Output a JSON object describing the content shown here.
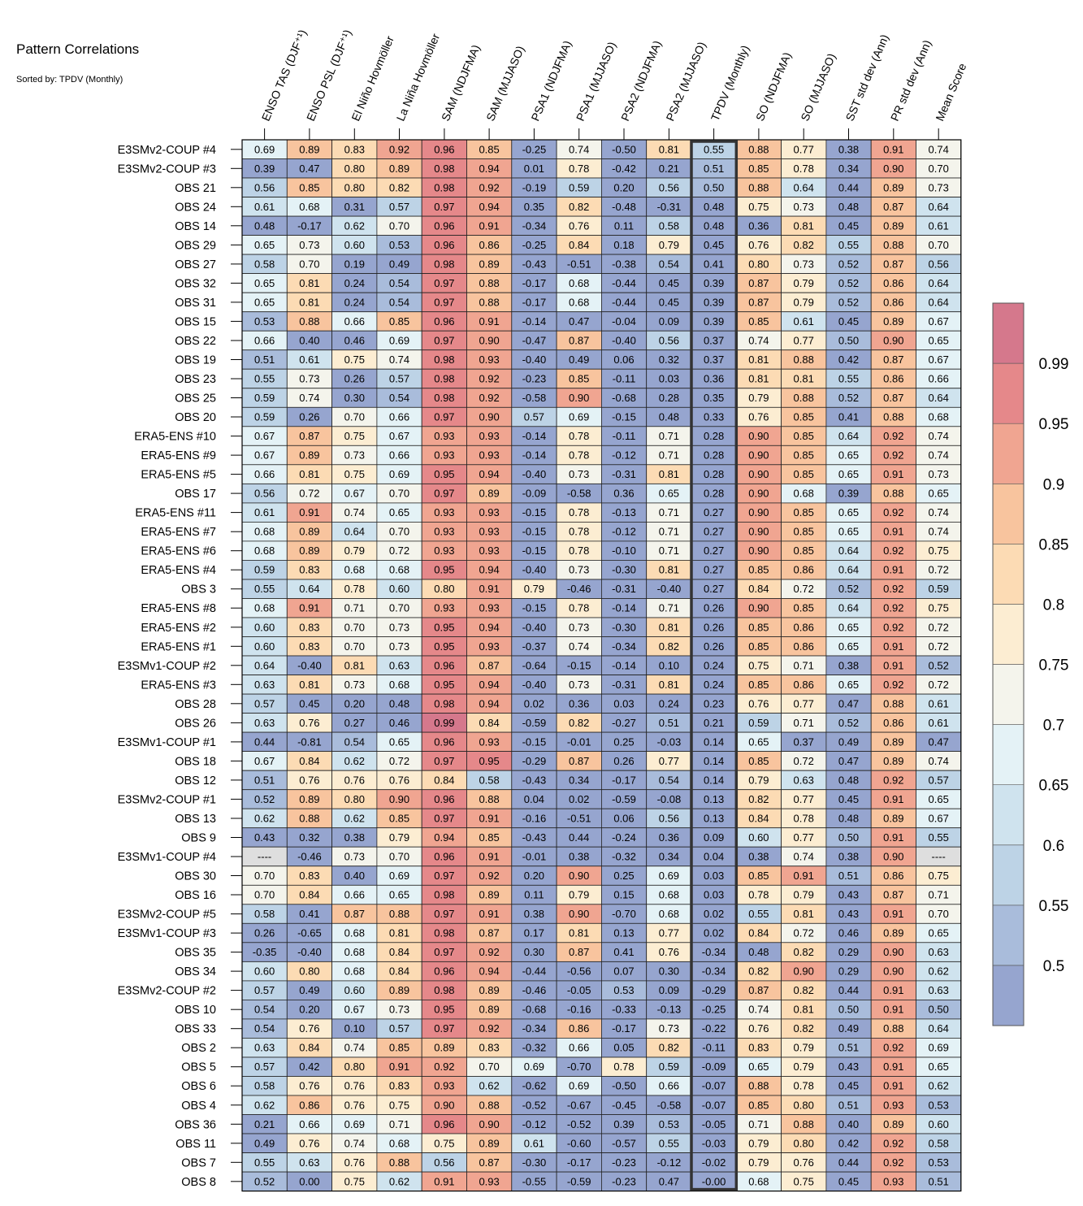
{
  "chart_data": {
    "type": "heatmap",
    "title": "Pattern Correlations",
    "subtitle": "Sorted by: TPDV (Monthly)",
    "columns": [
      "ENSO TAS (DJF⁺¹)",
      "ENSO PSL (DJF⁺¹)",
      "El Niño Hovmöller",
      "La Niña Hovmöller",
      "SAM (NDJFMA)",
      "SAM (MJJASO)",
      "PSA1 (NDJFMA)",
      "PSA1 (MJJASO)",
      "PSA2 (NDJFMA)",
      "PSA2 (MJJASO)",
      "TPDV (Monthly)",
      "SO (NDJFMA)",
      "SO (MJJASO)",
      "SST std dev (Ann)",
      "PR std dev (Ann)",
      "Mean Score"
    ],
    "highlighted_column": "TPDV (Monthly)",
    "missing_label": "----",
    "rows": [
      {
        "name": "E3SMv2-COUP #4",
        "values": [
          0.69,
          0.89,
          0.83,
          0.92,
          0.96,
          0.85,
          -0.25,
          0.74,
          -0.5,
          0.81,
          0.55,
          0.88,
          0.77,
          0.38,
          0.91,
          0.74
        ]
      },
      {
        "name": "E3SMv2-COUP #3",
        "values": [
          0.39,
          0.47,
          0.8,
          0.89,
          0.98,
          0.94,
          0.01,
          0.78,
          -0.42,
          0.21,
          0.51,
          0.85,
          0.78,
          0.34,
          0.9,
          0.7
        ]
      },
      {
        "name": "OBS 21",
        "values": [
          0.56,
          0.85,
          0.8,
          0.82,
          0.98,
          0.92,
          -0.19,
          0.59,
          0.2,
          0.56,
          0.5,
          0.88,
          0.64,
          0.44,
          0.89,
          0.73
        ]
      },
      {
        "name": "OBS 24",
        "values": [
          0.61,
          0.68,
          0.31,
          0.57,
          0.97,
          0.94,
          0.35,
          0.82,
          -0.48,
          -0.31,
          0.48,
          0.75,
          0.73,
          0.48,
          0.87,
          0.64
        ]
      },
      {
        "name": "OBS 14",
        "values": [
          0.48,
          -0.17,
          0.62,
          0.7,
          0.96,
          0.91,
          -0.34,
          0.76,
          0.11,
          0.58,
          0.48,
          0.36,
          0.81,
          0.45,
          0.89,
          0.61
        ]
      },
      {
        "name": "OBS 29",
        "values": [
          0.65,
          0.73,
          0.6,
          0.53,
          0.96,
          0.86,
          -0.25,
          0.84,
          0.18,
          0.79,
          0.45,
          0.76,
          0.82,
          0.55,
          0.88,
          0.7
        ]
      },
      {
        "name": "OBS 27",
        "values": [
          0.58,
          0.7,
          0.19,
          0.49,
          0.98,
          0.89,
          -0.43,
          -0.51,
          -0.38,
          0.54,
          0.41,
          0.8,
          0.73,
          0.52,
          0.87,
          0.56
        ]
      },
      {
        "name": "OBS 32",
        "values": [
          0.65,
          0.81,
          0.24,
          0.54,
          0.97,
          0.88,
          -0.17,
          0.68,
          -0.44,
          0.45,
          0.39,
          0.87,
          0.79,
          0.52,
          0.86,
          0.64
        ]
      },
      {
        "name": "OBS 31",
        "values": [
          0.65,
          0.81,
          0.24,
          0.54,
          0.97,
          0.88,
          -0.17,
          0.68,
          -0.44,
          0.45,
          0.39,
          0.87,
          0.79,
          0.52,
          0.86,
          0.64
        ]
      },
      {
        "name": "OBS 15",
        "values": [
          0.53,
          0.88,
          0.66,
          0.85,
          0.96,
          0.91,
          -0.14,
          0.47,
          -0.04,
          0.09,
          0.39,
          0.85,
          0.61,
          0.45,
          0.89,
          0.67
        ]
      },
      {
        "name": "OBS 22",
        "values": [
          0.66,
          0.4,
          0.46,
          0.69,
          0.97,
          0.9,
          -0.47,
          0.87,
          -0.4,
          0.56,
          0.37,
          0.74,
          0.77,
          0.5,
          0.9,
          0.65
        ]
      },
      {
        "name": "OBS 19",
        "values": [
          0.51,
          0.61,
          0.75,
          0.74,
          0.98,
          0.93,
          -0.4,
          0.49,
          0.06,
          0.32,
          0.37,
          0.81,
          0.88,
          0.42,
          0.87,
          0.67
        ]
      },
      {
        "name": "OBS 23",
        "values": [
          0.55,
          0.73,
          0.26,
          0.57,
          0.98,
          0.92,
          -0.23,
          0.85,
          -0.11,
          0.03,
          0.36,
          0.81,
          0.81,
          0.55,
          0.86,
          0.66
        ]
      },
      {
        "name": "OBS 25",
        "values": [
          0.59,
          0.74,
          0.3,
          0.54,
          0.98,
          0.92,
          -0.58,
          0.9,
          -0.68,
          0.28,
          0.35,
          0.79,
          0.88,
          0.52,
          0.87,
          0.64
        ]
      },
      {
        "name": "OBS 20",
        "values": [
          0.59,
          0.26,
          0.7,
          0.66,
          0.97,
          0.9,
          0.57,
          0.69,
          -0.15,
          0.48,
          0.33,
          0.76,
          0.85,
          0.41,
          0.88,
          0.68
        ]
      },
      {
        "name": "ERA5-ENS    #10",
        "values": [
          0.67,
          0.87,
          0.75,
          0.67,
          0.93,
          0.93,
          -0.14,
          0.78,
          -0.11,
          0.71,
          0.28,
          0.9,
          0.85,
          0.64,
          0.92,
          0.74
        ]
      },
      {
        "name": "ERA5-ENS    #9",
        "values": [
          0.67,
          0.89,
          0.73,
          0.66,
          0.93,
          0.93,
          -0.14,
          0.78,
          -0.12,
          0.71,
          0.28,
          0.9,
          0.85,
          0.65,
          0.92,
          0.74
        ]
      },
      {
        "name": "ERA5-ENS    #5",
        "values": [
          0.66,
          0.81,
          0.75,
          0.69,
          0.95,
          0.94,
          -0.4,
          0.73,
          -0.31,
          0.81,
          0.28,
          0.9,
          0.85,
          0.65,
          0.91,
          0.73
        ]
      },
      {
        "name": "OBS 17",
        "values": [
          0.56,
          0.72,
          0.67,
          0.7,
          0.97,
          0.89,
          -0.09,
          -0.58,
          0.36,
          0.65,
          0.28,
          0.9,
          0.68,
          0.39,
          0.88,
          0.65
        ]
      },
      {
        "name": "ERA5-ENS    #11",
        "values": [
          0.61,
          0.91,
          0.74,
          0.65,
          0.93,
          0.93,
          -0.15,
          0.78,
          -0.13,
          0.71,
          0.27,
          0.9,
          0.85,
          0.65,
          0.92,
          0.74
        ]
      },
      {
        "name": "ERA5-ENS    #7",
        "values": [
          0.68,
          0.89,
          0.64,
          0.7,
          0.93,
          0.93,
          -0.15,
          0.78,
          -0.12,
          0.71,
          0.27,
          0.9,
          0.85,
          0.65,
          0.91,
          0.74
        ]
      },
      {
        "name": "ERA5-ENS    #6",
        "values": [
          0.68,
          0.89,
          0.79,
          0.72,
          0.93,
          0.93,
          -0.15,
          0.78,
          -0.1,
          0.71,
          0.27,
          0.9,
          0.85,
          0.64,
          0.92,
          0.75
        ]
      },
      {
        "name": "ERA5-ENS    #4",
        "values": [
          0.59,
          0.83,
          0.68,
          0.68,
          0.95,
          0.94,
          -0.4,
          0.73,
          -0.3,
          0.81,
          0.27,
          0.85,
          0.86,
          0.64,
          0.91,
          0.72
        ]
      },
      {
        "name": "OBS 3",
        "values": [
          0.55,
          0.64,
          0.78,
          0.6,
          0.8,
          0.91,
          0.79,
          -0.46,
          -0.31,
          -0.4,
          0.27,
          0.84,
          0.72,
          0.52,
          0.92,
          0.59
        ]
      },
      {
        "name": "ERA5-ENS    #8",
        "values": [
          0.68,
          0.91,
          0.71,
          0.7,
          0.93,
          0.93,
          -0.15,
          0.78,
          -0.14,
          0.71,
          0.26,
          0.9,
          0.85,
          0.64,
          0.92,
          0.75
        ]
      },
      {
        "name": "ERA5-ENS    #2",
        "values": [
          0.6,
          0.83,
          0.7,
          0.73,
          0.95,
          0.94,
          -0.4,
          0.73,
          -0.3,
          0.81,
          0.26,
          0.85,
          0.86,
          0.65,
          0.92,
          0.72
        ]
      },
      {
        "name": "ERA5-ENS    #1",
        "values": [
          0.6,
          0.83,
          0.7,
          0.73,
          0.95,
          0.93,
          -0.37,
          0.74,
          -0.34,
          0.82,
          0.26,
          0.85,
          0.86,
          0.65,
          0.91,
          0.72
        ]
      },
      {
        "name": "E3SMv1-COUP #2",
        "values": [
          0.64,
          -0.4,
          0.81,
          0.63,
          0.96,
          0.87,
          -0.64,
          -0.15,
          -0.14,
          0.1,
          0.24,
          0.75,
          0.71,
          0.38,
          0.91,
          0.52
        ]
      },
      {
        "name": "ERA5-ENS    #3",
        "values": [
          0.63,
          0.81,
          0.73,
          0.68,
          0.95,
          0.94,
          -0.4,
          0.73,
          -0.31,
          0.81,
          0.24,
          0.85,
          0.86,
          0.65,
          0.92,
          0.72
        ]
      },
      {
        "name": "OBS 28",
        "values": [
          0.57,
          0.45,
          0.2,
          0.48,
          0.98,
          0.94,
          0.02,
          0.36,
          0.03,
          0.24,
          0.23,
          0.76,
          0.77,
          0.47,
          0.88,
          0.61
        ]
      },
      {
        "name": "OBS 26",
        "values": [
          0.63,
          0.76,
          0.27,
          0.46,
          0.99,
          0.84,
          -0.59,
          0.82,
          -0.27,
          0.51,
          0.21,
          0.59,
          0.71,
          0.52,
          0.86,
          0.61
        ]
      },
      {
        "name": "E3SMv1-COUP #1",
        "values": [
          0.44,
          -0.81,
          0.54,
          0.65,
          0.96,
          0.93,
          -0.15,
          -0.01,
          0.25,
          -0.03,
          0.14,
          0.65,
          0.37,
          0.49,
          0.89,
          0.47
        ]
      },
      {
        "name": "OBS 18",
        "values": [
          0.67,
          0.84,
          0.62,
          0.72,
          0.97,
          0.95,
          -0.29,
          0.87,
          0.26,
          0.77,
          0.14,
          0.85,
          0.72,
          0.47,
          0.89,
          0.74
        ]
      },
      {
        "name": "OBS 12",
        "values": [
          0.51,
          0.76,
          0.76,
          0.76,
          0.84,
          0.58,
          -0.43,
          0.34,
          -0.17,
          0.54,
          0.14,
          0.79,
          0.63,
          0.48,
          0.92,
          0.57
        ]
      },
      {
        "name": "E3SMv2-COUP #1",
        "values": [
          0.52,
          0.89,
          0.8,
          0.9,
          0.96,
          0.88,
          0.04,
          0.02,
          -0.59,
          -0.08,
          0.13,
          0.82,
          0.77,
          0.45,
          0.91,
          0.65
        ]
      },
      {
        "name": "OBS 13",
        "values": [
          0.62,
          0.88,
          0.62,
          0.85,
          0.97,
          0.91,
          -0.16,
          -0.51,
          0.06,
          0.56,
          0.13,
          0.84,
          0.78,
          0.48,
          0.89,
          0.67
        ]
      },
      {
        "name": "OBS 9",
        "values": [
          0.43,
          0.32,
          0.38,
          0.79,
          0.94,
          0.85,
          -0.43,
          0.44,
          -0.24,
          0.36,
          0.09,
          0.6,
          0.77,
          0.5,
          0.91,
          0.55
        ]
      },
      {
        "name": "E3SMv1-COUP #4",
        "values": [
          null,
          -0.46,
          0.73,
          0.7,
          0.96,
          0.91,
          -0.01,
          0.38,
          -0.32,
          0.34,
          0.04,
          0.38,
          0.74,
          0.38,
          0.9,
          null
        ]
      },
      {
        "name": "OBS 30",
        "values": [
          0.7,
          0.83,
          0.4,
          0.69,
          0.97,
          0.92,
          0.2,
          0.9,
          0.25,
          0.69,
          0.03,
          0.85,
          0.91,
          0.51,
          0.86,
          0.75
        ]
      },
      {
        "name": "OBS 16",
        "values": [
          0.7,
          0.84,
          0.66,
          0.65,
          0.98,
          0.89,
          0.11,
          0.79,
          0.15,
          0.68,
          0.03,
          0.78,
          0.79,
          0.43,
          0.87,
          0.71
        ]
      },
      {
        "name": "E3SMv2-COUP #5",
        "values": [
          0.58,
          0.41,
          0.87,
          0.88,
          0.97,
          0.91,
          0.38,
          0.9,
          -0.7,
          0.68,
          0.02,
          0.55,
          0.81,
          0.43,
          0.91,
          0.7
        ]
      },
      {
        "name": "E3SMv1-COUP #3",
        "values": [
          0.26,
          -0.65,
          0.68,
          0.81,
          0.98,
          0.87,
          0.17,
          0.81,
          0.13,
          0.77,
          0.02,
          0.84,
          0.72,
          0.46,
          0.89,
          0.65
        ]
      },
      {
        "name": "OBS 35",
        "values": [
          -0.35,
          -0.4,
          0.68,
          0.84,
          0.97,
          0.92,
          0.3,
          0.87,
          0.41,
          0.76,
          -0.34,
          0.48,
          0.82,
          0.29,
          0.9,
          0.63
        ]
      },
      {
        "name": "OBS 34",
        "values": [
          0.6,
          0.8,
          0.68,
          0.84,
          0.96,
          0.94,
          -0.44,
          -0.56,
          0.07,
          0.3,
          -0.34,
          0.82,
          0.9,
          0.29,
          0.9,
          0.62
        ]
      },
      {
        "name": "E3SMv2-COUP #2",
        "values": [
          0.57,
          0.49,
          0.6,
          0.89,
          0.98,
          0.89,
          -0.46,
          -0.05,
          0.53,
          0.09,
          -0.29,
          0.87,
          0.82,
          0.44,
          0.91,
          0.63
        ]
      },
      {
        "name": "OBS 10",
        "values": [
          0.54,
          0.2,
          0.67,
          0.73,
          0.95,
          0.89,
          -0.68,
          -0.16,
          -0.33,
          -0.13,
          -0.25,
          0.74,
          0.81,
          0.5,
          0.91,
          0.5
        ]
      },
      {
        "name": "OBS 33",
        "values": [
          0.54,
          0.76,
          0.1,
          0.57,
          0.97,
          0.92,
          -0.34,
          0.86,
          -0.17,
          0.73,
          -0.22,
          0.76,
          0.82,
          0.49,
          0.88,
          0.64
        ]
      },
      {
        "name": "OBS 2",
        "values": [
          0.63,
          0.84,
          0.74,
          0.85,
          0.89,
          0.83,
          -0.32,
          0.66,
          0.05,
          0.82,
          -0.11,
          0.83,
          0.79,
          0.51,
          0.92,
          0.69
        ]
      },
      {
        "name": "OBS 5",
        "values": [
          0.57,
          0.42,
          0.8,
          0.91,
          0.92,
          0.7,
          0.69,
          -0.7,
          0.78,
          0.59,
          -0.09,
          0.65,
          0.79,
          0.43,
          0.91,
          0.65
        ]
      },
      {
        "name": "OBS 6",
        "values": [
          0.58,
          0.76,
          0.76,
          0.83,
          0.93,
          0.62,
          -0.62,
          0.69,
          -0.5,
          0.66,
          -0.07,
          0.88,
          0.78,
          0.45,
          0.91,
          0.62
        ]
      },
      {
        "name": "OBS 4",
        "values": [
          0.62,
          0.86,
          0.76,
          0.75,
          0.9,
          0.88,
          -0.52,
          -0.67,
          -0.45,
          -0.58,
          -0.07,
          0.85,
          0.8,
          0.51,
          0.93,
          0.53
        ]
      },
      {
        "name": "OBS 36",
        "values": [
          0.21,
          0.66,
          0.69,
          0.71,
          0.96,
          0.9,
          -0.12,
          -0.52,
          0.39,
          0.53,
          -0.05,
          0.71,
          0.88,
          0.4,
          0.89,
          0.6
        ]
      },
      {
        "name": "OBS 11",
        "values": [
          0.49,
          0.76,
          0.74,
          0.68,
          0.75,
          0.89,
          0.61,
          -0.6,
          -0.57,
          0.55,
          -0.03,
          0.79,
          0.8,
          0.42,
          0.92,
          0.58
        ]
      },
      {
        "name": "OBS 7",
        "values": [
          0.55,
          0.63,
          0.76,
          0.88,
          0.56,
          0.87,
          -0.3,
          -0.17,
          -0.23,
          -0.12,
          -0.02,
          0.79,
          0.76,
          0.44,
          0.92,
          0.53
        ]
      },
      {
        "name": "OBS 8",
        "values": [
          0.52,
          0.0,
          0.75,
          0.62,
          0.91,
          0.93,
          -0.55,
          -0.59,
          -0.23,
          0.47,
          "-0.00",
          0.68,
          0.75,
          0.45,
          0.93,
          0.51
        ]
      }
    ],
    "colorbar": {
      "bounds": [
        0.5,
        0.55,
        0.6,
        0.65,
        0.7,
        0.75,
        0.8,
        0.85,
        0.9,
        0.95,
        0.99
      ],
      "tick_labels": [
        "0.5",
        "0.55",
        "0.6",
        "0.65",
        "0.7",
        "0.75",
        "0.8",
        "0.85",
        "0.9",
        "0.95",
        "0.99"
      ],
      "colors": [
        "#96a5cf",
        "#a9bcdb",
        "#bdd3e6",
        "#cfe3ee",
        "#e4f2f6",
        "#f4f4ec",
        "#fcedd2",
        "#fcdbb4",
        "#f8c49e",
        "#f0a591",
        "#e5888a",
        "#d5788c"
      ],
      "missing_color": "#dedede"
    }
  }
}
